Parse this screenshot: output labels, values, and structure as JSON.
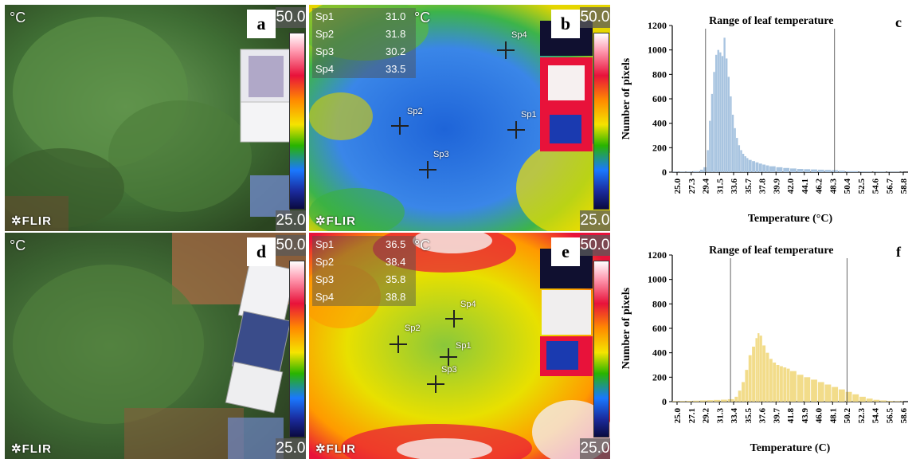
{
  "panels": {
    "a": {
      "letter": "a",
      "unit": "°C",
      "scale_max": "50.0",
      "scale_min": "25.0",
      "brand": "FLIR"
    },
    "b": {
      "letter": "b",
      "unit": "°C",
      "scale_max": "50.0",
      "scale_min": "25.0",
      "brand": "FLIR",
      "spots": [
        {
          "name": "Sp1",
          "value": "31.0"
        },
        {
          "name": "Sp2",
          "value": "31.8"
        },
        {
          "name": "Sp3",
          "value": "30.2"
        },
        {
          "name": "Sp4",
          "value": "33.5"
        }
      ],
      "marker_labels": [
        "Sp1",
        "Sp2",
        "Sp3",
        "Sp4"
      ]
    },
    "d": {
      "letter": "d",
      "unit": "°C",
      "scale_max": "50.0",
      "scale_min": "25.0",
      "brand": "FLIR"
    },
    "e": {
      "letter": "e",
      "unit": "°C",
      "scale_max": "50.0",
      "scale_min": "25.0",
      "brand": "FLIR",
      "spots": [
        {
          "name": "Sp1",
          "value": "36.5"
        },
        {
          "name": "Sp2",
          "value": "38.4"
        },
        {
          "name": "Sp3",
          "value": "35.8"
        },
        {
          "name": "Sp4",
          "value": "38.8"
        }
      ],
      "marker_labels": [
        "Sp1",
        "Sp2",
        "Sp3",
        "Sp4"
      ]
    }
  },
  "chart_data": [
    {
      "panel": "c",
      "type": "bar",
      "title": "Range of leaf temperature",
      "xlabel": "Temperature (°C)",
      "ylabel": "Number of pixels",
      "xlim": [
        25.0,
        59.0
      ],
      "ylim": [
        0,
        1200
      ],
      "yticks": [
        "0",
        "200",
        "400",
        "600",
        "800",
        "1000",
        "1200"
      ],
      "xticks": [
        "25.0",
        "27.3",
        "29.4",
        "31.5",
        "33.6",
        "35.7",
        "37.8",
        "39.9",
        "42.0",
        "44.1",
        "46.2",
        "48.3",
        "50.4",
        "52.5",
        "54.6",
        "56.7",
        "58.8"
      ],
      "range_lines": [
        29.8,
        48.4
      ],
      "color": "#a8c4e0",
      "x": [
        25.0,
        26.0,
        27.0,
        28.0,
        29.0,
        29.5,
        30.0,
        30.3,
        30.6,
        30.9,
        31.2,
        31.5,
        31.8,
        32.1,
        32.4,
        32.7,
        33.0,
        33.3,
        33.6,
        33.9,
        34.2,
        34.5,
        34.8,
        35.1,
        35.4,
        35.7,
        36.0,
        36.5,
        37.0,
        37.5,
        38.0,
        38.5,
        39.0,
        40.0,
        41.0,
        42.0,
        43.0,
        44.0,
        45.0,
        46.0,
        47.0,
        48.0,
        49.0,
        50.0,
        52.0,
        54.0,
        56.0,
        58.0
      ],
      "y": [
        3,
        4,
        5,
        8,
        20,
        40,
        180,
        420,
        640,
        820,
        960,
        1000,
        980,
        950,
        1100,
        930,
        780,
        620,
        470,
        360,
        280,
        220,
        180,
        150,
        130,
        115,
        100,
        90,
        80,
        70,
        62,
        55,
        48,
        40,
        34,
        30,
        26,
        24,
        22,
        20,
        18,
        16,
        12,
        8,
        5,
        4,
        3,
        2
      ]
    },
    {
      "panel": "f",
      "type": "bar",
      "title": "Range of leaf temperature",
      "xlabel": "Temperature (C)",
      "ylabel": "Number of pixels",
      "xlim": [
        25.0,
        59.0
      ],
      "ylim": [
        0,
        1200
      ],
      "yticks": [
        "0",
        "200",
        "400",
        "600",
        "800",
        "1000",
        "1200"
      ],
      "xticks": [
        "25.0",
        "27.1",
        "29.2",
        "31.3",
        "33.4",
        "35.5",
        "37.6",
        "39.7",
        "41.8",
        "43.9",
        "46.0",
        "48.1",
        "50.2",
        "52.3",
        "54.4",
        "56.5",
        "58.6"
      ],
      "range_lines": [
        33.4,
        50.2
      ],
      "color": "#f2dc8a",
      "x": [
        25.0,
        26.0,
        27.0,
        28.0,
        29.0,
        30.0,
        31.0,
        32.0,
        33.0,
        34.0,
        34.5,
        35.0,
        35.5,
        36.0,
        36.5,
        37.0,
        37.3,
        37.6,
        38.0,
        38.5,
        39.0,
        39.5,
        40.0,
        40.5,
        41.0,
        41.5,
        42.0,
        43.0,
        44.0,
        45.0,
        46.0,
        47.0,
        48.0,
        49.0,
        50.0,
        51.0,
        52.0,
        53.0,
        54.0,
        55.0,
        56.0,
        57.0,
        58.0
      ],
      "y": [
        4,
        5,
        6,
        8,
        10,
        12,
        14,
        16,
        20,
        40,
        90,
        160,
        260,
        380,
        450,
        520,
        560,
        540,
        460,
        400,
        350,
        320,
        300,
        290,
        280,
        270,
        250,
        220,
        200,
        180,
        160,
        140,
        120,
        100,
        80,
        60,
        40,
        25,
        15,
        10,
        6,
        4,
        3
      ]
    }
  ]
}
